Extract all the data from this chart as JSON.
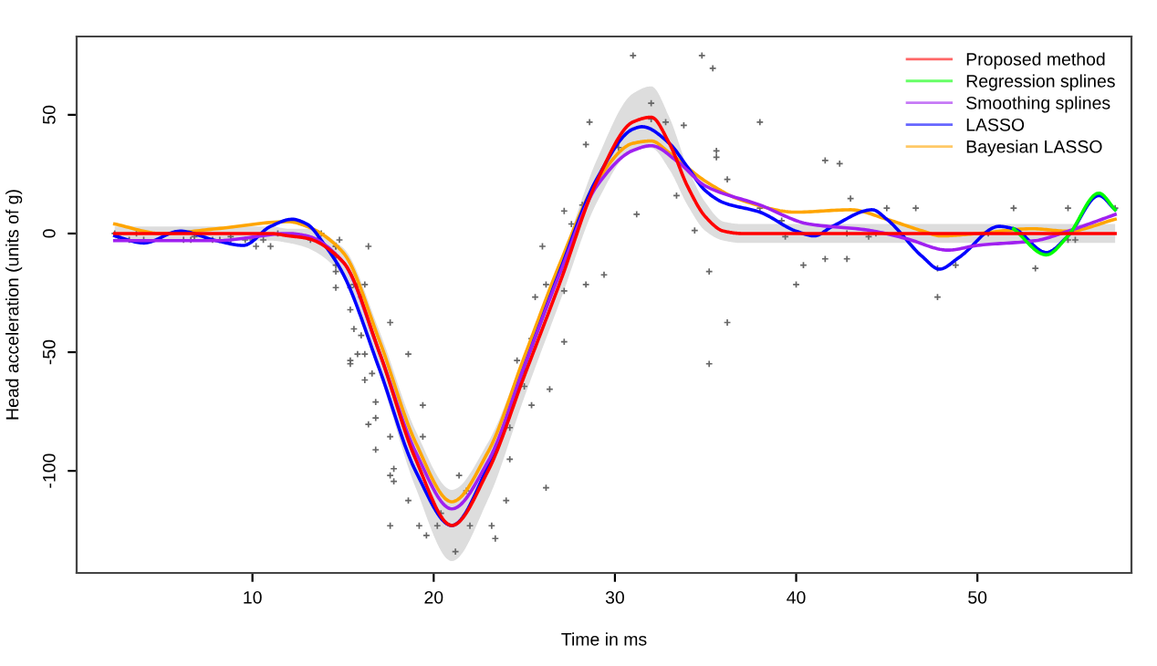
{
  "chart_data": {
    "type": "line",
    "xlabel": "Time in ms",
    "ylabel": "Head acceleration (units of g)",
    "xlim": [
      0.3,
      58.5
    ],
    "ylim": [
      -143,
      83
    ],
    "xticks": [
      10,
      20,
      30,
      40,
      50
    ],
    "yticks": [
      -100,
      -50,
      0,
      50
    ],
    "grid": false,
    "legend": "top right",
    "series": [
      {
        "type": "scatter",
        "color": "#666666",
        "marker": "cross",
        "x": [
          2.4,
          2.6,
          3.2,
          3.6,
          4.0,
          6.2,
          6.6,
          6.8,
          7.8,
          8.2,
          8.8,
          8.8,
          9.6,
          10.0,
          10.2,
          10.6,
          11.0,
          11.4,
          13.2,
          13.6,
          13.8,
          14.6,
          14.6,
          14.6,
          14.6,
          14.6,
          14.6,
          14.8,
          15.4,
          15.4,
          15.4,
          15.4,
          15.6,
          15.6,
          15.8,
          15.8,
          16.0,
          16.0,
          16.2,
          16.2,
          16.2,
          16.4,
          16.4,
          16.6,
          16.8,
          16.8,
          16.8,
          17.6,
          17.6,
          17.6,
          17.6,
          17.8,
          17.8,
          18.6,
          18.6,
          19.2,
          19.4,
          19.4,
          19.6,
          20.2,
          20.4,
          21.2,
          21.4,
          21.8,
          22.0,
          23.2,
          23.4,
          24.0,
          24.2,
          24.2,
          24.6,
          25.0,
          25.0,
          25.4,
          25.4,
          25.6,
          26.0,
          26.2,
          26.2,
          26.4,
          27.0,
          27.2,
          27.2,
          27.2,
          27.6,
          28.2,
          28.4,
          28.4,
          28.6,
          29.4,
          30.2,
          31.0,
          31.2,
          32.0,
          32.0,
          32.8,
          33.4,
          33.8,
          34.4,
          34.8,
          35.2,
          35.2,
          35.4,
          35.6,
          35.6,
          36.2,
          36.2,
          38.0,
          38.0,
          39.2,
          39.4,
          40.0,
          40.4,
          41.6,
          41.6,
          42.4,
          42.8,
          42.8,
          43.0,
          44.0,
          44.4,
          45.0,
          46.6,
          47.8,
          47.8,
          48.8,
          50.6,
          52.0,
          53.2,
          55.0,
          55.0,
          55.4,
          57.6
        ],
        "values": [
          0.0,
          -1.3,
          -2.7,
          0.0,
          -2.7,
          -2.7,
          -2.7,
          -1.3,
          -2.7,
          -2.7,
          -1.3,
          -2.7,
          -2.7,
          -2.7,
          -5.4,
          -2.7,
          -5.4,
          0.0,
          -2.7,
          -2.7,
          0.0,
          -13.3,
          -5.4,
          -5.4,
          -9.3,
          -16.0,
          -22.8,
          -2.7,
          -22.8,
          -32.1,
          -53.5,
          -54.9,
          -40.2,
          -21.5,
          -21.5,
          -50.8,
          -42.9,
          -26.8,
          -21.5,
          -50.8,
          -61.7,
          -5.4,
          -80.4,
          -59.0,
          -71.0,
          -91.1,
          -77.7,
          -37.5,
          -85.6,
          -123.1,
          -101.9,
          -99.1,
          -104.4,
          -112.5,
          -50.8,
          -123.1,
          -85.6,
          -72.3,
          -127.2,
          -123.1,
          -117.9,
          -134.0,
          -101.9,
          -108.4,
          -123.1,
          -123.1,
          -128.5,
          -112.5,
          -95.1,
          -81.8,
          -53.5,
          -64.4,
          -57.6,
          -72.3,
          -44.3,
          -26.8,
          -5.4,
          -107.1,
          -21.5,
          -65.6,
          -16.0,
          -45.6,
          -24.2,
          9.5,
          4.0,
          12.0,
          -21.5,
          37.5,
          46.9,
          -17.4,
          36.2,
          75.0,
          8.1,
          54.9,
          48.2,
          46.9,
          16.0,
          45.6,
          1.3,
          75.0,
          -16.0,
          -54.9,
          69.6,
          34.8,
          32.1,
          -37.5,
          22.8,
          46.9,
          10.7,
          5.4,
          -1.3,
          -21.5,
          -13.3,
          30.8,
          -10.7,
          29.4,
          0.0,
          -10.7,
          14.7,
          -1.3,
          0.0,
          10.7,
          10.7,
          -26.8,
          -14.7,
          -13.3,
          0.0,
          10.7,
          -14.7,
          -2.7,
          10.7,
          -2.7,
          10.7
        ]
      },
      {
        "name": "Proposed method",
        "color": "#ff0000",
        "x": [
          2.4,
          5,
          8,
          11,
          12,
          13,
          15,
          17,
          19,
          21,
          23,
          25,
          27,
          29,
          31,
          32,
          33,
          34,
          35,
          36,
          37,
          40,
          45,
          50,
          55,
          57.6
        ],
        "values": [
          0,
          0,
          0,
          0,
          -1,
          -2,
          -12,
          -50,
          -95,
          -123,
          -100,
          -60,
          -20,
          22,
          47,
          49,
          38,
          20,
          7,
          1,
          0,
          0,
          0,
          0,
          0,
          0
        ],
        "lower": [
          -3,
          -3,
          -3,
          -3,
          -4,
          -6,
          -18,
          -59,
          -107,
          -138,
          -112,
          -69,
          -28,
          13,
          35,
          36,
          27,
          12,
          1,
          -3,
          -4,
          -4,
          -4,
          -4,
          -4,
          -4
        ],
        "upper": [
          3,
          3,
          3,
          3,
          2,
          2,
          -6,
          -41,
          -83,
          -108,
          -88,
          -51,
          -12,
          31,
          59,
          62,
          49,
          28,
          13,
          5,
          4,
          4,
          4,
          4,
          4,
          4
        ]
      },
      {
        "name": "Regression splines",
        "color": "#00ff00",
        "x": [
          52,
          53.8,
          55,
          56.7,
          57.6
        ],
        "values": [
          2,
          -9,
          -1,
          17,
          10
        ]
      },
      {
        "name": "Smoothing splines",
        "color": "#a020f0",
        "x": [
          2.4,
          5,
          8,
          12,
          13,
          15,
          17,
          19,
          21,
          23,
          25,
          27,
          29,
          31,
          32,
          33.5,
          35,
          38,
          40.7,
          43.9,
          46,
          48.4,
          50,
          53.2,
          55,
          57.6
        ],
        "values": [
          -3,
          -3,
          -3,
          0,
          -1,
          -12,
          -50,
          -92,
          -116,
          -96,
          -56,
          -16,
          20,
          35,
          37,
          30,
          20,
          12,
          4,
          1.5,
          -2,
          -7,
          -5,
          -3,
          1,
          8
        ]
      },
      {
        "name": "LASSO",
        "color": "#0000ff",
        "x": [
          2.4,
          4,
          6,
          8,
          9.5,
          11,
          12.2,
          13,
          14,
          15,
          17,
          19,
          21,
          23,
          25,
          27,
          29,
          31,
          31.5,
          33,
          34,
          35,
          36,
          38,
          40,
          41,
          42,
          44.2,
          45,
          47,
          47.9,
          49,
          51.2,
          52,
          53.8,
          55,
          56.7,
          57.6
        ],
        "values": [
          -1,
          -4,
          1,
          -3,
          -5,
          3,
          6,
          4,
          -5,
          -17,
          -57,
          -100,
          -123,
          -98,
          -56,
          -15,
          23,
          44,
          45,
          38,
          28,
          18,
          13,
          9,
          1,
          -1,
          3,
          10,
          6,
          -10,
          -15,
          -10,
          3,
          2,
          -8,
          -1,
          16,
          10
        ]
      },
      {
        "name": "Bayesian LASSO",
        "color": "#ffa500",
        "x": [
          2.4,
          5,
          8,
          12,
          13,
          15,
          17,
          19,
          21,
          23,
          25,
          27,
          29,
          31,
          32,
          33,
          35,
          37,
          40,
          43,
          45,
          47,
          48,
          50,
          53,
          55,
          57.6
        ],
        "values": [
          4,
          0,
          2,
          5,
          3,
          -8,
          -45,
          -88,
          -113,
          -92,
          -52,
          -12,
          22,
          38,
          39,
          34,
          22,
          14,
          9,
          10,
          6,
          1,
          -1,
          0,
          2,
          1,
          6
        ]
      }
    ]
  }
}
